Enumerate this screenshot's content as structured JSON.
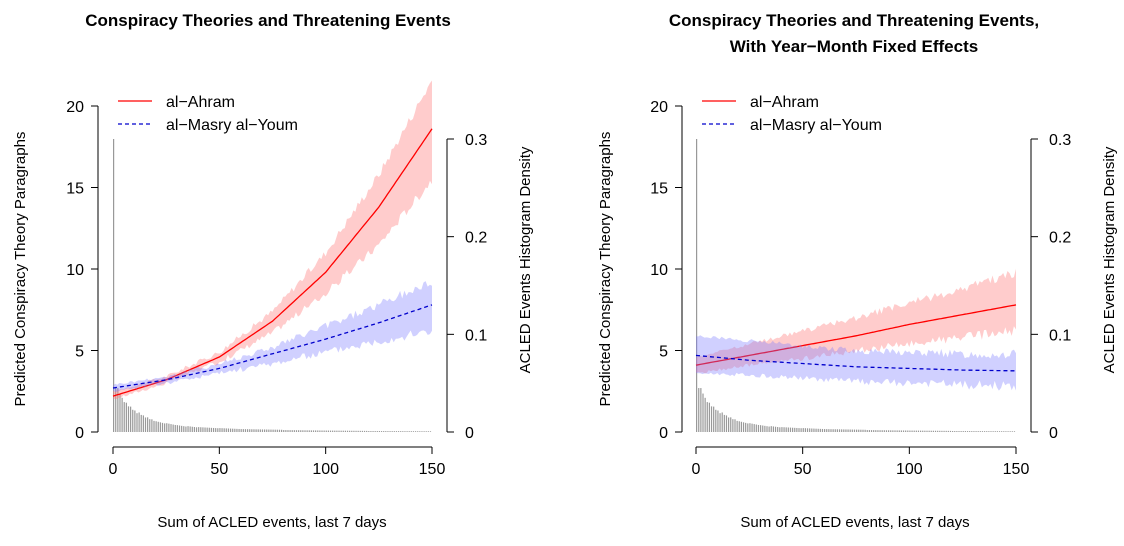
{
  "charts": [
    {
      "id": "left",
      "title_lines": [
        "Conspiracy Theories and Threatening Events"
      ],
      "xlabel": "Sum of ACLED events, last 7 days",
      "ylabel_left": "Predicted Conspiracy Theory Paragraphs",
      "ylabel_right": "ACLED Events Histogram Density",
      "xticks": [
        "0",
        "50",
        "100",
        "150"
      ],
      "yticks_left": [
        "0",
        "5",
        "10",
        "15",
        "20"
      ],
      "yticks_right": [
        "0",
        "0.1",
        "0.2",
        "0.3"
      ],
      "legend": [
        "al−Ahram",
        "al−Masry al−Youm"
      ]
    },
    {
      "id": "right",
      "title_lines": [
        "Conspiracy Theories and Threatening Events,",
        "With Year−Month Fixed Effects"
      ],
      "xlabel": "Sum of ACLED events, last 7 days",
      "ylabel_left": "Predicted Conspiracy Theory Paragraphs",
      "ylabel_right": "ACLED Events Histogram Density",
      "xticks": [
        "0",
        "50",
        "100",
        "150"
      ],
      "yticks_left": [
        "0",
        "5",
        "10",
        "15",
        "20"
      ],
      "yticks_right": [
        "0",
        "0.1",
        "0.2",
        "0.3"
      ],
      "legend": [
        "al−Ahram",
        "al−Masry al−Youm"
      ]
    }
  ],
  "chart_data": [
    {
      "type": "line",
      "title": "Conspiracy Theories and Threatening Events",
      "xlabel": "Sum of ACLED events, last 7 days",
      "ylabel": "Predicted Conspiracy Theory Paragraphs",
      "y2label": "ACLED Events Histogram Density",
      "xlim": [
        0,
        150
      ],
      "ylim": [
        0,
        20
      ],
      "y2lim": [
        0,
        0.3
      ],
      "legend_position": "top-left",
      "x": [
        0,
        25,
        50,
        75,
        100,
        125,
        150
      ],
      "series": [
        {
          "name": "al−Ahram",
          "color": "#ff0000",
          "linestyle": "solid",
          "values": [
            2.2,
            3.2,
            4.6,
            6.8,
            9.8,
            13.8,
            18.6
          ],
          "lower": [
            2.0,
            3.0,
            4.3,
            6.1,
            8.5,
            11.5,
            15.5
          ],
          "upper": [
            2.5,
            3.4,
            4.9,
            7.4,
            11.0,
            15.8,
            21.6
          ]
        },
        {
          "name": "al−Masry al−Youm",
          "color": "#0000cc",
          "linestyle": "dashed",
          "values": [
            2.7,
            3.2,
            3.9,
            4.8,
            5.7,
            6.7,
            7.8
          ],
          "lower": [
            2.5,
            3.0,
            3.6,
            4.2,
            4.9,
            5.6,
            6.2
          ],
          "upper": [
            2.9,
            3.4,
            4.2,
            5.2,
            6.5,
            7.8,
            9.2
          ]
        }
      ],
      "histogram": {
        "color": "#999999",
        "bins": [
          0,
          2,
          4,
          6,
          8,
          10,
          12,
          14,
          16,
          18,
          20,
          25,
          30,
          35,
          40,
          50,
          60,
          80,
          100,
          120,
          150
        ],
        "density": [
          0.3,
          0.045,
          0.035,
          0.03,
          0.026,
          0.022,
          0.02,
          0.017,
          0.015,
          0.013,
          0.011,
          0.009,
          0.007,
          0.006,
          0.005,
          0.004,
          0.003,
          0.002,
          0.0015,
          0.001,
          0.0008
        ]
      }
    },
    {
      "type": "line",
      "title": "Conspiracy Theories and Threatening Events, With Year−Month Fixed Effects",
      "xlabel": "Sum of ACLED events, last 7 days",
      "ylabel": "Predicted Conspiracy Theory Paragraphs",
      "y2label": "ACLED Events Histogram Density",
      "xlim": [
        0,
        150
      ],
      "ylim": [
        0,
        20
      ],
      "y2lim": [
        0,
        0.3
      ],
      "legend_position": "top-left",
      "x": [
        0,
        25,
        50,
        75,
        100,
        125,
        150
      ],
      "series": [
        {
          "name": "al−Ahram",
          "color": "#ff0000",
          "linestyle": "solid",
          "values": [
            4.1,
            4.7,
            5.3,
            5.9,
            6.6,
            7.2,
            7.8
          ],
          "lower": [
            3.6,
            4.1,
            4.5,
            5.0,
            5.4,
            5.8,
            6.2
          ],
          "upper": [
            4.6,
            5.4,
            6.2,
            7.0,
            7.9,
            8.8,
            9.8
          ]
        },
        {
          "name": "al−Masry al−Youm",
          "color": "#0000cc",
          "linestyle": "dashed",
          "values": [
            4.7,
            4.4,
            4.2,
            4.0,
            3.9,
            3.8,
            3.75
          ],
          "lower": [
            3.6,
            3.5,
            3.3,
            3.1,
            3.0,
            2.9,
            2.8
          ],
          "upper": [
            5.9,
            5.6,
            5.3,
            5.0,
            4.9,
            4.8,
            4.8
          ]
        }
      ],
      "histogram": {
        "color": "#999999",
        "bins": [
          0,
          2,
          4,
          6,
          8,
          10,
          12,
          14,
          16,
          18,
          20,
          25,
          30,
          35,
          40,
          50,
          60,
          80,
          100,
          120,
          150
        ],
        "density": [
          0.3,
          0.045,
          0.035,
          0.03,
          0.026,
          0.022,
          0.02,
          0.017,
          0.015,
          0.013,
          0.011,
          0.009,
          0.007,
          0.006,
          0.005,
          0.004,
          0.003,
          0.002,
          0.0015,
          0.001,
          0.0008
        ]
      }
    }
  ]
}
